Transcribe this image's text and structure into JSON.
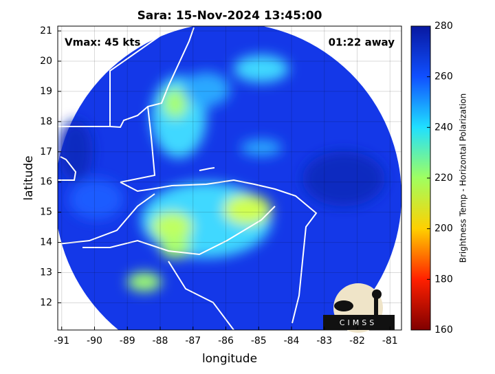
{
  "chart_data": {
    "type": "map",
    "title": "Sara: 15-Nov-2024 13:45:00",
    "annotations": [
      "Vmax: 45 kts",
      "01:22 away"
    ],
    "xlabel": "longitude",
    "ylabel": "latitude",
    "xlim": [
      -91.12,
      -80.65
    ],
    "ylim": [
      11.1,
      21.16
    ],
    "xticks": [
      -91,
      -90,
      -89,
      -88,
      -87,
      -86,
      -85,
      -84,
      -83,
      -82,
      -81
    ],
    "yticks": [
      12,
      13,
      14,
      15,
      16,
      17,
      18,
      19,
      20,
      21
    ],
    "grid": true,
    "colorbar": {
      "label": "Brightness Temp - Horizontal Polarization",
      "lim": [
        160,
        280
      ],
      "ticks": [
        160,
        180,
        200,
        220,
        240,
        260,
        280
      ],
      "colors": [
        "#800000",
        "#ff2000",
        "#ffd000",
        "#a0ff60",
        "#20e0ff",
        "#1050ff",
        "#0818a0"
      ]
    },
    "logo": "CIMSS"
  }
}
